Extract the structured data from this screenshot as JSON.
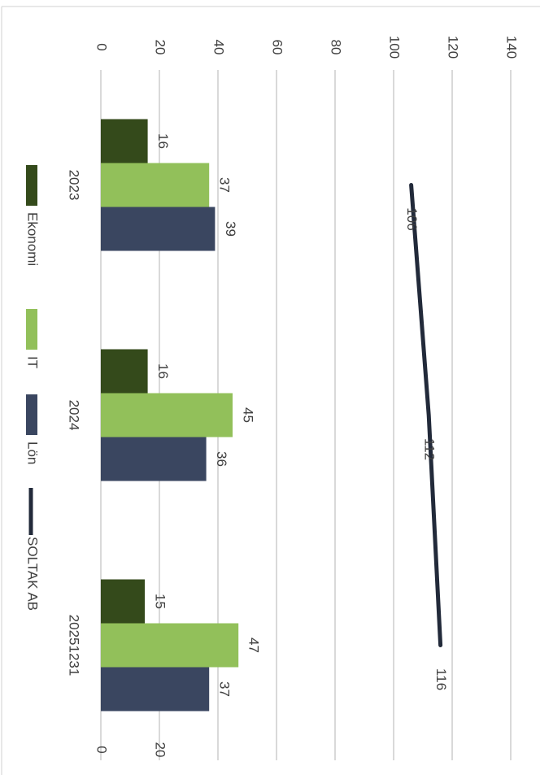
{
  "chart_data": {
    "type": "bar",
    "categories": [
      "2023",
      "2024",
      "20251231"
    ],
    "series": [
      {
        "name": "Ekonomi",
        "color": "#344a1b",
        "values": [
          16,
          16,
          15
        ]
      },
      {
        "name": "IT",
        "color": "#92c05a",
        "values": [
          37,
          45,
          47
        ]
      },
      {
        "name": "Lön",
        "color": "#3a4660",
        "values": [
          39,
          36,
          37
        ]
      },
      {
        "name": "SOLTAK AB",
        "color": "#222a3a",
        "values": [
          106,
          112,
          116
        ],
        "chart_type": "line"
      }
    ],
    "ylim": [
      0,
      140
    ],
    "yticks": [
      0,
      20,
      40,
      60,
      80,
      100,
      120,
      140
    ],
    "grid": true
  }
}
